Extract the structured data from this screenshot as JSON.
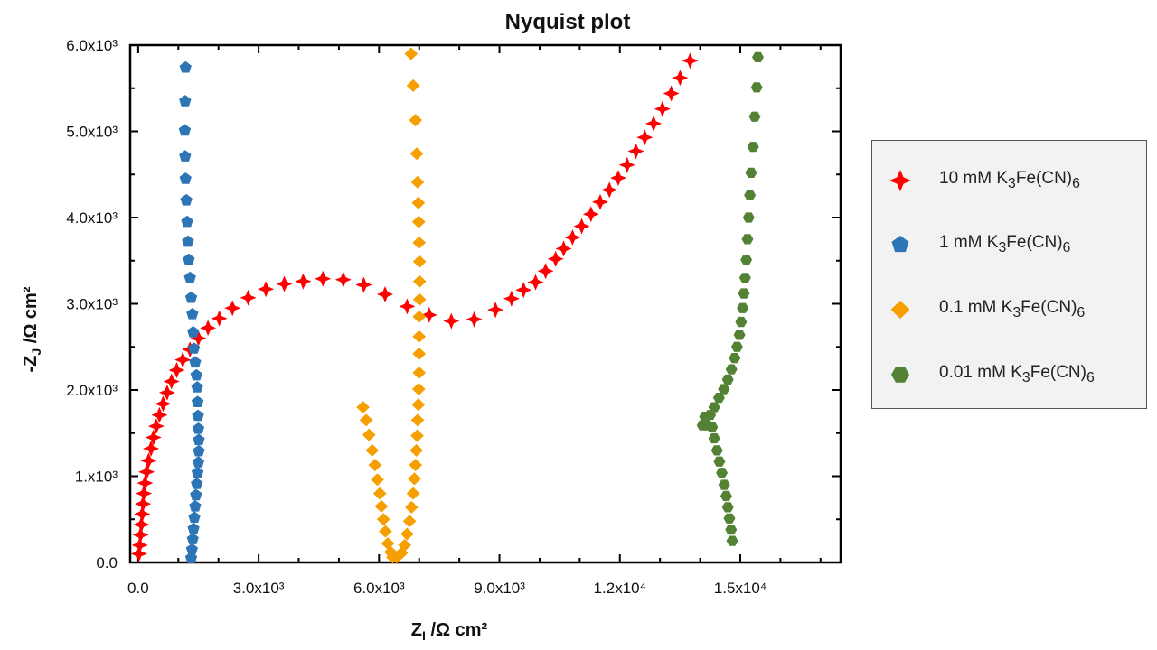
{
  "chart_data": {
    "type": "scatter",
    "title": "Nyquist plot",
    "xlabel": {
      "main": "Z",
      "sub": "I",
      "rest": " /Ω cm²"
    },
    "ylabel": {
      "main": "-Z",
      "sub": "J",
      "rest": " /Ω cm²"
    },
    "xlim": [
      -200,
      17500
    ],
    "ylim": [
      0,
      6000
    ],
    "x_ticks": [
      {
        "value": 0,
        "label": "0.0"
      },
      {
        "value": 3000,
        "label": "3.0x10³"
      },
      {
        "value": 6000,
        "label": "6.0x10³"
      },
      {
        "value": 9000,
        "label": "9.0x10³"
      },
      {
        "value": 12000,
        "label": "1.2x10⁴"
      },
      {
        "value": 15000,
        "label": "1.5x10⁴"
      }
    ],
    "y_ticks": [
      {
        "value": 0,
        "label": "0.0"
      },
      {
        "value": 1000,
        "label": "1.x10³"
      },
      {
        "value": 2000,
        "label": "2.0x10³"
      },
      {
        "value": 3000,
        "label": "3.0x10³"
      },
      {
        "value": 4000,
        "label": "4.0x10³"
      },
      {
        "value": 5000,
        "label": "5.0x10³"
      },
      {
        "value": 6000,
        "label": "6.0x10³"
      }
    ],
    "grid": false,
    "legend_position": "right",
    "series": [
      {
        "name": "10 mM K₃Fe(CN)₆",
        "label": {
          "pre": "10 mM K",
          "sub1": "3",
          "mid": "Fe(CN)",
          "sub2": "6"
        },
        "marker": "star4",
        "color": "#ff0000",
        "points": [
          [
            20,
            100
          ],
          [
            40,
            200
          ],
          [
            60,
            320
          ],
          [
            80,
            440
          ],
          [
            100,
            560
          ],
          [
            120,
            680
          ],
          [
            140,
            800
          ],
          [
            170,
            920
          ],
          [
            210,
            1050
          ],
          [
            260,
            1180
          ],
          [
            320,
            1320
          ],
          [
            380,
            1450
          ],
          [
            450,
            1580
          ],
          [
            530,
            1710
          ],
          [
            620,
            1840
          ],
          [
            720,
            1970
          ],
          [
            830,
            2100
          ],
          [
            960,
            2230
          ],
          [
            1110,
            2350
          ],
          [
            1290,
            2470
          ],
          [
            1500,
            2600
          ],
          [
            1740,
            2720
          ],
          [
            2020,
            2830
          ],
          [
            2350,
            2950
          ],
          [
            2740,
            3070
          ],
          [
            3180,
            3170
          ],
          [
            3640,
            3230
          ],
          [
            4110,
            3260
          ],
          [
            4600,
            3290
          ],
          [
            5110,
            3280
          ],
          [
            5620,
            3220
          ],
          [
            6150,
            3110
          ],
          [
            6700,
            2970
          ],
          [
            7250,
            2870
          ],
          [
            7800,
            2800
          ],
          [
            8370,
            2820
          ],
          [
            8900,
            2930
          ],
          [
            9300,
            3060
          ],
          [
            9600,
            3160
          ],
          [
            9900,
            3250
          ],
          [
            10150,
            3380
          ],
          [
            10400,
            3520
          ],
          [
            10600,
            3640
          ],
          [
            10820,
            3770
          ],
          [
            11050,
            3900
          ],
          [
            11280,
            4040
          ],
          [
            11510,
            4180
          ],
          [
            11740,
            4320
          ],
          [
            11960,
            4460
          ],
          [
            12180,
            4610
          ],
          [
            12400,
            4770
          ],
          [
            12620,
            4930
          ],
          [
            12840,
            5090
          ],
          [
            13060,
            5260
          ],
          [
            13280,
            5440
          ],
          [
            13500,
            5620
          ],
          [
            13750,
            5820
          ]
        ]
      },
      {
        "name": "1 mM K₃Fe(CN)₆",
        "label": {
          "pre": "1 mM K",
          "sub1": "3",
          "mid": "Fe(CN)",
          "sub2": "6"
        },
        "marker": "pentagon",
        "color": "#2e75b6",
        "points": [
          [
            1320,
            50
          ],
          [
            1340,
            150
          ],
          [
            1360,
            270
          ],
          [
            1380,
            390
          ],
          [
            1400,
            520
          ],
          [
            1420,
            650
          ],
          [
            1440,
            780
          ],
          [
            1460,
            910
          ],
          [
            1480,
            1040
          ],
          [
            1500,
            1160
          ],
          [
            1510,
            1290
          ],
          [
            1510,
            1420
          ],
          [
            1500,
            1550
          ],
          [
            1490,
            1700
          ],
          [
            1480,
            1860
          ],
          [
            1470,
            2030
          ],
          [
            1450,
            2170
          ],
          [
            1420,
            2320
          ],
          [
            1390,
            2480
          ],
          [
            1370,
            2670
          ],
          [
            1350,
            2880
          ],
          [
            1320,
            3070
          ],
          [
            1290,
            3300
          ],
          [
            1260,
            3510
          ],
          [
            1240,
            3720
          ],
          [
            1220,
            3950
          ],
          [
            1200,
            4200
          ],
          [
            1180,
            4450
          ],
          [
            1170,
            4710
          ],
          [
            1160,
            5010
          ],
          [
            1170,
            5350
          ],
          [
            1180,
            5740
          ]
        ]
      },
      {
        "name": "0.1 mM K₃Fe(CN)₆",
        "label": {
          "pre": "0.1 mM K",
          "sub1": "3",
          "mid": "Fe(CN)",
          "sub2": "6"
        },
        "marker": "diamond",
        "color": "#f5a000",
        "points": [
          [
            5600,
            1800
          ],
          [
            5680,
            1650
          ],
          [
            5750,
            1480
          ],
          [
            5830,
            1300
          ],
          [
            5900,
            1130
          ],
          [
            5960,
            960
          ],
          [
            6020,
            800
          ],
          [
            6060,
            650
          ],
          [
            6110,
            500
          ],
          [
            6160,
            360
          ],
          [
            6220,
            220
          ],
          [
            6290,
            120
          ],
          [
            6340,
            60
          ],
          [
            6440,
            60
          ],
          [
            6560,
            110
          ],
          [
            6640,
            200
          ],
          [
            6700,
            330
          ],
          [
            6760,
            480
          ],
          [
            6810,
            640
          ],
          [
            6850,
            800
          ],
          [
            6880,
            970
          ],
          [
            6910,
            1130
          ],
          [
            6930,
            1300
          ],
          [
            6950,
            1470
          ],
          [
            6960,
            1650
          ],
          [
            6980,
            1830
          ],
          [
            6990,
            2010
          ],
          [
            7000,
            2200
          ],
          [
            7000,
            2420
          ],
          [
            7000,
            2620
          ],
          [
            7000,
            2850
          ],
          [
            7010,
            3050
          ],
          [
            7010,
            3260
          ],
          [
            7010,
            3490
          ],
          [
            7000,
            3710
          ],
          [
            6990,
            3950
          ],
          [
            6980,
            4170
          ],
          [
            6960,
            4410
          ],
          [
            6940,
            4740
          ],
          [
            6910,
            5130
          ],
          [
            6850,
            5530
          ],
          [
            6800,
            5900
          ]
        ]
      },
      {
        "name": "0.01 mM K₃Fe(CN)₆",
        "label": {
          "pre": "0.01 mM K",
          "sub1": "3",
          "mid": "Fe(CN)",
          "sub2": "6"
        },
        "marker": "hexagon",
        "color": "#548235",
        "points": [
          [
            14800,
            250
          ],
          [
            14770,
            380
          ],
          [
            14730,
            510
          ],
          [
            14690,
            640
          ],
          [
            14650,
            770
          ],
          [
            14600,
            900
          ],
          [
            14540,
            1040
          ],
          [
            14480,
            1170
          ],
          [
            14420,
            1300
          ],
          [
            14350,
            1440
          ],
          [
            14300,
            1570
          ],
          [
            14180,
            1590
          ],
          [
            14060,
            1590
          ],
          [
            14120,
            1690
          ],
          [
            14250,
            1710
          ],
          [
            14350,
            1800
          ],
          [
            14470,
            1910
          ],
          [
            14590,
            2010
          ],
          [
            14690,
            2120
          ],
          [
            14780,
            2240
          ],
          [
            14860,
            2370
          ],
          [
            14920,
            2500
          ],
          [
            14980,
            2640
          ],
          [
            15020,
            2790
          ],
          [
            15060,
            2950
          ],
          [
            15090,
            3120
          ],
          [
            15120,
            3300
          ],
          [
            15150,
            3510
          ],
          [
            15180,
            3750
          ],
          [
            15210,
            4000
          ],
          [
            15240,
            4260
          ],
          [
            15270,
            4520
          ],
          [
            15320,
            4820
          ],
          [
            15360,
            5170
          ],
          [
            15410,
            5510
          ],
          [
            15440,
            5860
          ]
        ]
      }
    ]
  }
}
